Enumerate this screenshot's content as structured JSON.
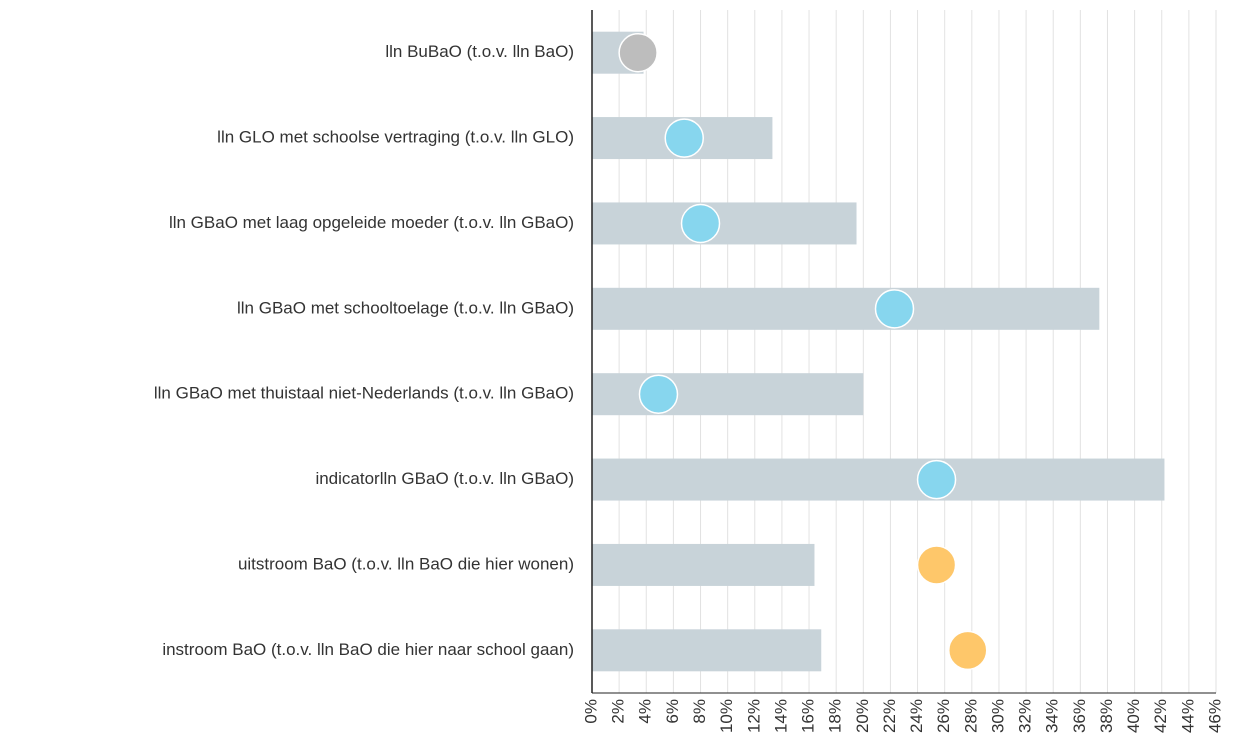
{
  "chart_data": {
    "type": "bar_dot",
    "categories": [
      "lln BuBaO (t.o.v. lln BaO)",
      "lln GLO met schoolse vertraging (t.o.v. lln GLO)",
      "lln GBaO met laag opgeleide moeder (t.o.v. lln GBaO)",
      "lln GBaO met schooltoelage (t.o.v. lln GBaO)",
      "lln GBaO met thuistaal niet-Nederlands (t.o.v. lln GBaO)",
      "indicatorlln GBaO (t.o.v. lln GBaO)",
      "uitstroom BaO (t.o.v. lln BaO die hier wonen)",
      "instroom BaO (t.o.v. lln BaO die hier naar school gaan)"
    ],
    "series": [
      {
        "color": "#c8d3d9",
        "values": [
          3.8,
          13.3,
          19.5,
          37.4,
          20.0,
          42.2,
          16.4,
          16.9
        ]
      },
      {
        "colors": [
          "#bdbdbd",
          "#87d6ee",
          "#87d6ee",
          "#87d6ee",
          "#87d6ee",
          "#87d6ee",
          "#fec76a",
          "#fec76a"
        ],
        "values": [
          3.4,
          6.8,
          8.0,
          22.3,
          4.9,
          25.4,
          25.4,
          27.7
        ]
      }
    ],
    "xlim": [
      0,
      46
    ],
    "xticks": [
      {
        "value": 0,
        "label": "0%"
      },
      {
        "value": 2,
        "label": "2%"
      },
      {
        "value": 4,
        "label": "4%"
      },
      {
        "value": 6,
        "label": "6%"
      },
      {
        "value": 8,
        "label": "8%"
      },
      {
        "value": 10,
        "label": "10%"
      },
      {
        "value": 12,
        "label": "12%"
      },
      {
        "value": 14,
        "label": "14%"
      },
      {
        "value": 16,
        "label": "16%"
      },
      {
        "value": 18,
        "label": "18%"
      },
      {
        "value": 20,
        "label": "20%"
      },
      {
        "value": 22,
        "label": "22%"
      },
      {
        "value": 24,
        "label": "24%"
      },
      {
        "value": 26,
        "label": "26%"
      },
      {
        "value": 28,
        "label": "28%"
      },
      {
        "value": 30,
        "label": "30%"
      },
      {
        "value": 32,
        "label": "32%"
      },
      {
        "value": 34,
        "label": "34%"
      },
      {
        "value": 36,
        "label": "36%"
      },
      {
        "value": 38,
        "label": "38%"
      },
      {
        "value": 40,
        "label": "40%"
      },
      {
        "value": 42,
        "label": "42%"
      },
      {
        "value": 44,
        "label": "44%"
      },
      {
        "value": 46,
        "label": "46%"
      }
    ],
    "grid": true
  }
}
